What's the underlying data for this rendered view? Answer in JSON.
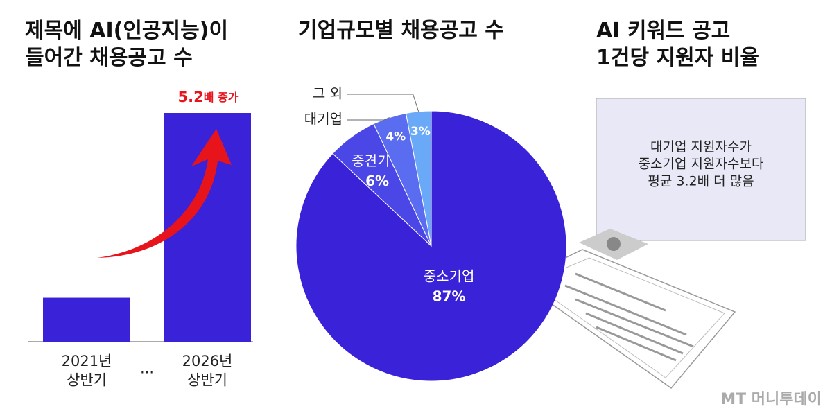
{
  "chart_data": [
    {
      "type": "bar",
      "title": "제목에 AI(인공지능)이\n들어간 채용공고 수",
      "categories": [
        "2021년\n상반기",
        "2026년\n상반기"
      ],
      "values": [
        1,
        5.2
      ],
      "color": "#3a22d8",
      "separator": "…",
      "annotation_value": "5.2",
      "annotation_text": "배 증가",
      "annotation_color": "#e8141c"
    },
    {
      "type": "pie",
      "title": "기업규모별 채용공고 수",
      "categories": [
        "중소기업",
        "중견기업",
        "대기업",
        "그 외"
      ],
      "values": [
        87,
        6,
        4,
        3
      ],
      "value_labels": [
        "87%",
        "6%",
        "4%",
        "3%"
      ],
      "colors": [
        "#3a22d8",
        "#4b46e6",
        "#5a6cf0",
        "#6aa8f8"
      ]
    }
  ],
  "info": {
    "title": "AI 키워드 공고\n1건당 지원자 비율",
    "text": "대기업 지원자수가\n중소기업 지원자수보다\n평균 3.2배 더 많음"
  },
  "source": "MT 머니투데이"
}
